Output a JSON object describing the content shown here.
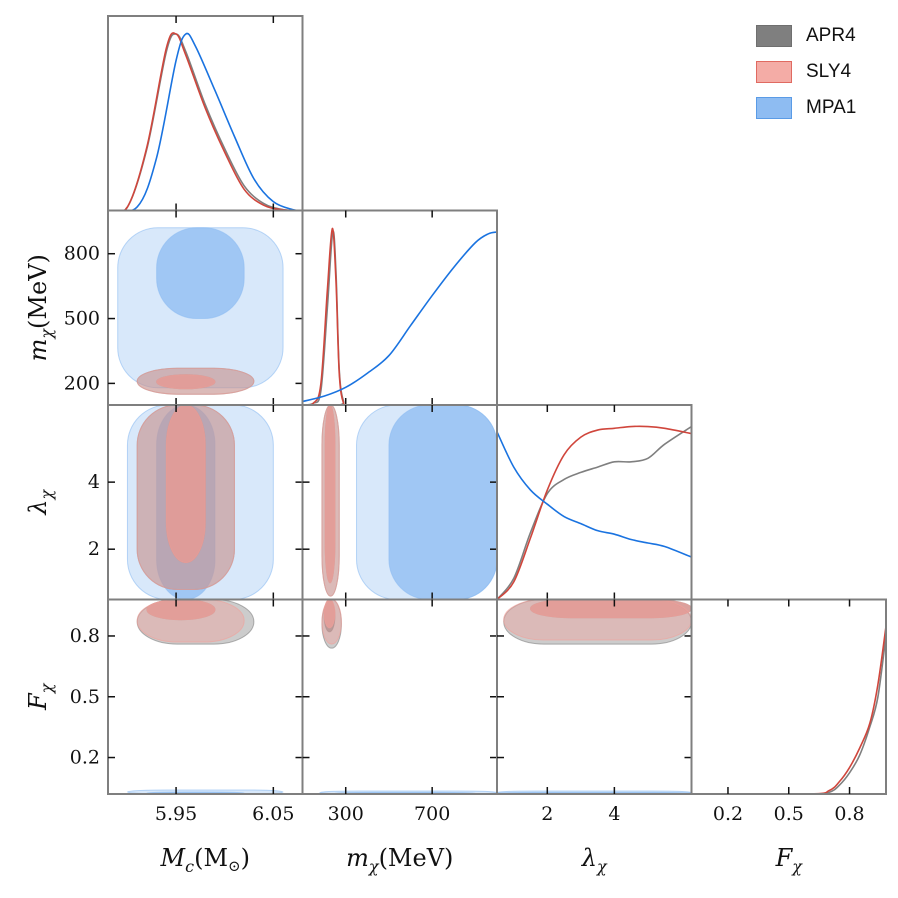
{
  "chart_data": {
    "type": "corner",
    "parameters": [
      {
        "key": "mc",
        "label_base": "M",
        "label_sub": "c",
        "label_suffix": "(M",
        "label_suffix2": ")",
        "range": [
          5.88,
          6.08
        ],
        "ticks": [
          5.95,
          6.05
        ],
        "tick_labels": [
          "5.95",
          "6.05"
        ]
      },
      {
        "key": "mchi",
        "label_base": "m",
        "label_sub": "χ",
        "label_suffix": "(MeV)",
        "range": [
          100,
          1000
        ],
        "ticks": [
          300,
          700
        ],
        "tick_labels": [
          "300",
          "700"
        ],
        "y_ticks": [
          200,
          500,
          800
        ],
        "y_tick_labels": [
          "200",
          "500",
          "800"
        ]
      },
      {
        "key": "lambda",
        "label_base": "λ",
        "label_sub": "χ",
        "label_suffix": "",
        "range": [
          0.5,
          6.3
        ],
        "ticks": [
          2,
          4
        ],
        "tick_labels": [
          "2",
          "4"
        ],
        "y_ticks": [
          2,
          4
        ],
        "y_tick_labels": [
          "2",
          "4"
        ]
      },
      {
        "key": "fchi",
        "label_base": "F",
        "label_sub": "χ",
        "label_suffix": "",
        "range": [
          0.02,
          0.98
        ],
        "ticks": [
          0.2,
          0.5,
          0.8
        ],
        "tick_labels": [
          "0.2",
          "0.5",
          "0.8"
        ],
        "y_ticks": [
          0.2,
          0.5,
          0.8
        ],
        "y_tick_labels": [
          "0.2",
          "0.5",
          "0.8"
        ]
      }
    ],
    "series": [
      {
        "name": "APR4",
        "line_color": "#7f7f7f",
        "fill_color": "#7f7f7f"
      },
      {
        "name": "SLY4",
        "line_color": "#d0463c",
        "fill_color": "#f2a09a"
      },
      {
        "name": "MPA1",
        "line_color": "#1a73e0",
        "fill_color": "#8ebcf2"
      }
    ],
    "marginals": {
      "mc": {
        "APR4": [
          [
            5.88,
            0
          ],
          [
            5.9,
            0.02
          ],
          [
            5.92,
            0.35
          ],
          [
            5.94,
            0.9
          ],
          [
            5.95,
            1.0
          ],
          [
            5.96,
            0.9
          ],
          [
            5.98,
            0.6
          ],
          [
            6.0,
            0.35
          ],
          [
            6.02,
            0.14
          ],
          [
            6.04,
            0.04
          ],
          [
            6.06,
            0.005
          ],
          [
            6.08,
            0
          ]
        ],
        "SLY4": [
          [
            5.88,
            0
          ],
          [
            5.9,
            0.02
          ],
          [
            5.92,
            0.36
          ],
          [
            5.94,
            0.92
          ],
          [
            5.95,
            1.0
          ],
          [
            5.96,
            0.88
          ],
          [
            5.98,
            0.58
          ],
          [
            6.0,
            0.33
          ],
          [
            6.02,
            0.12
          ],
          [
            6.04,
            0.03
          ],
          [
            6.06,
            0.004
          ],
          [
            6.08,
            0
          ]
        ],
        "MPA1": [
          [
            5.88,
            0
          ],
          [
            5.91,
            0.02
          ],
          [
            5.93,
            0.3
          ],
          [
            5.95,
            0.85
          ],
          [
            5.96,
            1.0
          ],
          [
            5.97,
            0.93
          ],
          [
            5.99,
            0.68
          ],
          [
            6.01,
            0.42
          ],
          [
            6.03,
            0.18
          ],
          [
            6.05,
            0.05
          ],
          [
            6.07,
            0.005
          ],
          [
            6.08,
            0
          ]
        ]
      },
      "mchi": {
        "APR4": [
          [
            100,
            0
          ],
          [
            150,
            0.01
          ],
          [
            185,
            0.08
          ],
          [
            215,
            0.55
          ],
          [
            240,
            0.98
          ],
          [
            255,
            0.75
          ],
          [
            270,
            0.2
          ],
          [
            290,
            0.02
          ],
          [
            320,
            0
          ],
          [
            1000,
            0
          ]
        ],
        "SLY4": [
          [
            100,
            0
          ],
          [
            150,
            0.01
          ],
          [
            185,
            0.12
          ],
          [
            215,
            0.65
          ],
          [
            238,
            1.0
          ],
          [
            255,
            0.7
          ],
          [
            270,
            0.18
          ],
          [
            290,
            0.01
          ],
          [
            320,
            0
          ],
          [
            1000,
            0
          ]
        ],
        "MPA1": [
          [
            100,
            0.02
          ],
          [
            200,
            0.05
          ],
          [
            300,
            0.1
          ],
          [
            400,
            0.18
          ],
          [
            500,
            0.28
          ],
          [
            600,
            0.45
          ],
          [
            700,
            0.62
          ],
          [
            800,
            0.78
          ],
          [
            900,
            0.92
          ],
          [
            960,
            0.97
          ],
          [
            1000,
            0.98
          ]
        ]
      },
      "lambda": {
        "APR4": [
          [
            0.5,
            0
          ],
          [
            1.0,
            0.12
          ],
          [
            1.5,
            0.38
          ],
          [
            2.0,
            0.6
          ],
          [
            2.5,
            0.68
          ],
          [
            3.0,
            0.72
          ],
          [
            3.5,
            0.75
          ],
          [
            4.0,
            0.78
          ],
          [
            4.5,
            0.78
          ],
          [
            5.0,
            0.8
          ],
          [
            5.5,
            0.88
          ],
          [
            6.3,
            0.98
          ]
        ],
        "SLY4": [
          [
            0.5,
            0
          ],
          [
            1.0,
            0.1
          ],
          [
            1.5,
            0.35
          ],
          [
            2.0,
            0.62
          ],
          [
            2.5,
            0.82
          ],
          [
            3.0,
            0.92
          ],
          [
            3.5,
            0.96
          ],
          [
            4.0,
            0.97
          ],
          [
            4.5,
            0.98
          ],
          [
            5.0,
            0.98
          ],
          [
            5.5,
            0.97
          ],
          [
            6.3,
            0.94
          ]
        ],
        "MPA1": [
          [
            0.5,
            0.95
          ],
          [
            1.0,
            0.75
          ],
          [
            1.5,
            0.62
          ],
          [
            2.0,
            0.54
          ],
          [
            2.5,
            0.47
          ],
          [
            3.0,
            0.43
          ],
          [
            3.5,
            0.39
          ],
          [
            4.0,
            0.37
          ],
          [
            4.5,
            0.34
          ],
          [
            5.0,
            0.32
          ],
          [
            5.5,
            0.3
          ],
          [
            6.3,
            0.24
          ]
        ]
      },
      "fchi": {
        "APR4": [
          [
            0.02,
            0
          ],
          [
            0.6,
            0
          ],
          [
            0.7,
            0.01
          ],
          [
            0.75,
            0.05
          ],
          [
            0.8,
            0.12
          ],
          [
            0.85,
            0.22
          ],
          [
            0.9,
            0.38
          ],
          [
            0.94,
            0.55
          ],
          [
            0.98,
            0.9
          ]
        ],
        "SLY4": [
          [
            0.02,
            0
          ],
          [
            0.6,
            0
          ],
          [
            0.7,
            0.02
          ],
          [
            0.75,
            0.07
          ],
          [
            0.8,
            0.15
          ],
          [
            0.85,
            0.26
          ],
          [
            0.9,
            0.4
          ],
          [
            0.94,
            0.62
          ],
          [
            0.98,
            0.95
          ]
        ],
        "MPA1": [
          [
            0.02,
            0.05
          ],
          [
            0.025,
            0
          ],
          [
            0.98,
            0
          ]
        ]
      }
    },
    "contours": {
      "mchi_mc": {
        "MPA1": {
          "x95": [
            5.89,
            6.06
          ],
          "y95": [
            180,
            920
          ],
          "x68": [
            5.93,
            6.02
          ],
          "y68": [
            500,
            920
          ]
        },
        "APR4": {
          "x95": [
            5.91,
            6.03
          ],
          "y95": [
            150,
            270
          ],
          "x68": [
            5.93,
            5.99
          ],
          "y68": [
            175,
            240
          ]
        },
        "SLY4": {
          "x95": [
            5.91,
            6.03
          ],
          "y95": [
            150,
            270
          ],
          "x68": [
            5.93,
            5.99
          ],
          "y68": [
            175,
            240
          ]
        }
      },
      "lambda_mc": {
        "MPA1": {
          "x95": [
            5.9,
            6.05
          ],
          "y95": [
            0.5,
            6.3
          ],
          "x68": [
            5.93,
            5.99
          ],
          "y68": [
            0.5,
            6.3
          ]
        },
        "APR4": {
          "x95": [
            5.91,
            6.01
          ],
          "y95": [
            0.8,
            6.3
          ],
          "x68": [
            5.94,
            5.98
          ],
          "y68": [
            1.6,
            6.3
          ]
        },
        "SLY4": {
          "x95": [
            5.91,
            6.01
          ],
          "y95": [
            0.8,
            6.3
          ],
          "x68": [
            5.94,
            5.98
          ],
          "y68": [
            1.6,
            6.3
          ]
        }
      },
      "fchi_mc": {
        "APR4": {
          "x95": [
            5.91,
            6.03
          ],
          "y95": [
            0.76,
            0.98
          ],
          "x68": [
            5.92,
            5.99
          ],
          "y68": [
            0.88,
            0.98
          ]
        },
        "SLY4": {
          "x95": [
            5.91,
            6.02
          ],
          "y95": [
            0.77,
            0.98
          ],
          "x68": [
            5.92,
            5.99
          ],
          "y68": [
            0.88,
            0.98
          ]
        },
        "MPA1": {
          "x95": [
            5.9,
            6.06
          ],
          "y95": [
            0.02,
            0.04
          ],
          "x68": [
            5.92,
            6.02
          ],
          "y68": [
            0.02,
            0.03
          ]
        }
      },
      "lambda_mchi": {
        "MPA1": {
          "x95": [
            350,
            1000
          ],
          "y95": [
            0.5,
            6.3
          ],
          "x68": [
            500,
            1000
          ],
          "y68": [
            0.5,
            6.3
          ]
        },
        "APR4": {
          "x95": [
            190,
            270
          ],
          "y95": [
            0.6,
            6.3
          ],
          "x68": [
            205,
            250
          ],
          "y68": [
            1.0,
            6.3
          ]
        },
        "SLY4": {
          "x95": [
            190,
            270
          ],
          "y95": [
            0.6,
            6.3
          ],
          "x68": [
            205,
            250
          ],
          "y68": [
            1.0,
            6.3
          ]
        }
      },
      "fchi_mchi": {
        "APR4": {
          "x95": [
            190,
            280
          ],
          "y95": [
            0.74,
            0.98
          ],
          "x68": [
            200,
            250
          ],
          "y68": [
            0.82,
            0.98
          ]
        },
        "SLY4": {
          "x95": [
            190,
            280
          ],
          "y95": [
            0.76,
            0.98
          ],
          "x68": [
            200,
            250
          ],
          "y68": [
            0.84,
            0.98
          ]
        },
        "MPA1": {
          "x95": [
            180,
            1000
          ],
          "y95": [
            0.02,
            0.035
          ],
          "x68": [
            250,
            900
          ],
          "y68": [
            0.02,
            0.028
          ]
        }
      },
      "fchi_lambda": {
        "APR4": {
          "x95": [
            0.7,
            6.3
          ],
          "y95": [
            0.76,
            0.98
          ],
          "x68": [
            1.5,
            6.3
          ],
          "y68": [
            0.89,
            0.98
          ]
        },
        "SLY4": {
          "x95": [
            0.7,
            6.3
          ],
          "y95": [
            0.78,
            0.98
          ],
          "x68": [
            1.5,
            6.3
          ],
          "y68": [
            0.89,
            0.98
          ]
        },
        "MPA1": {
          "x95": [
            0.5,
            6.3
          ],
          "y95": [
            0.02,
            0.035
          ],
          "x68": [
            0.5,
            6.3
          ],
          "y68": [
            0.02,
            0.028
          ]
        }
      }
    }
  },
  "legend": {
    "items": [
      {
        "label": "APR4",
        "swatch": "#7f7f7f",
        "border": "#6f6f6f"
      },
      {
        "label": "SLY4",
        "swatch": "#f4aca6",
        "border": "#e06a61"
      },
      {
        "label": "MPA1",
        "swatch": "#8ebcf2",
        "border": "#5a9be6"
      }
    ]
  }
}
